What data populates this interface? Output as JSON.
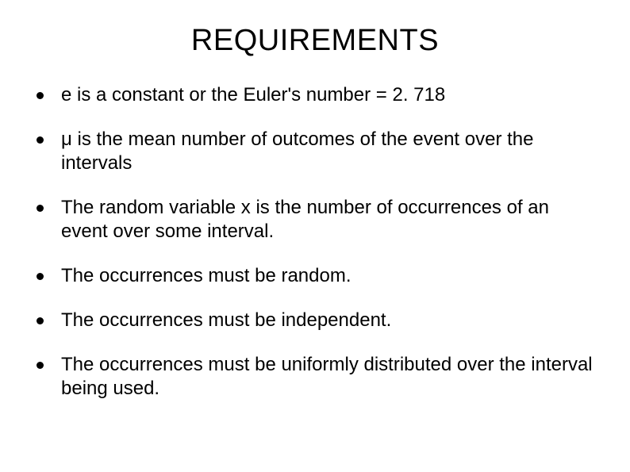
{
  "title": "REQUIREMENTS",
  "title_fontsize": 38,
  "body_fontsize": 24,
  "background_color": "#ffffff",
  "text_color": "#000000",
  "bullet_color": "#000000",
  "bullet_size": 9,
  "items": [
    "e is a constant or the Euler's number =  2. 718",
    "μ is the mean number of outcomes of the event over the intervals",
    "The random variable x is the number of occurrences of an event over some interval.",
    "The occurrences must be random.",
    "The occurrences must be independent.",
    "The occurrences must be uniformly distributed over the interval being used."
  ]
}
